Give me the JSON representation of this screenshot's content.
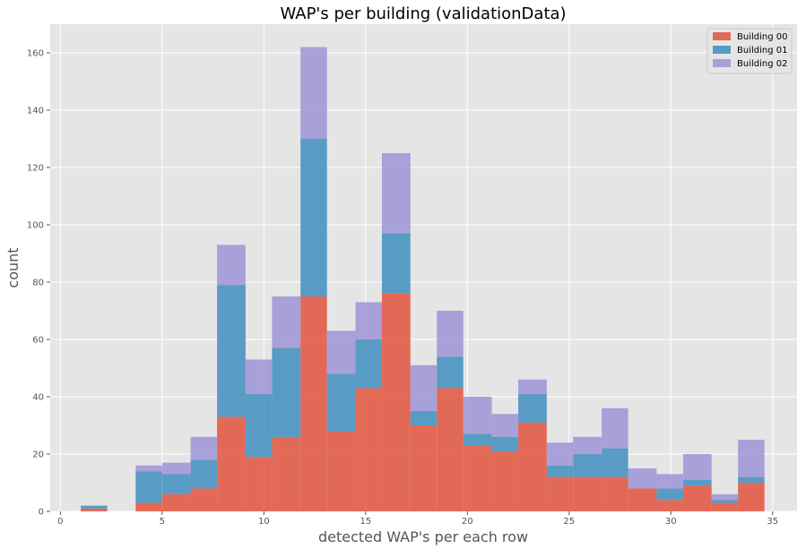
{
  "chart_data": {
    "type": "bar",
    "stacked": true,
    "title": "WAP's per building (validationData)",
    "xlabel": "detected WAP's per each row",
    "ylabel": "count",
    "xlim": [
      -0.5,
      36.2
    ],
    "ylim": [
      0,
      170
    ],
    "xticks": [
      0,
      5,
      10,
      15,
      20,
      25,
      30,
      35
    ],
    "yticks": [
      0,
      20,
      40,
      60,
      80,
      100,
      120,
      140,
      160
    ],
    "grid": true,
    "legend_position": "top-right",
    "bins": [
      [
        1,
        2.3
      ],
      [
        2.3,
        3.7
      ],
      [
        3.7,
        5.0
      ],
      [
        5.0,
        6.4
      ],
      [
        6.4,
        7.7
      ],
      [
        7.7,
        9.1
      ],
      [
        9.1,
        10.4
      ],
      [
        10.4,
        11.8
      ],
      [
        11.8,
        13.1
      ],
      [
        13.1,
        14.5
      ],
      [
        14.5,
        15.8
      ],
      [
        15.8,
        17.2
      ],
      [
        17.2,
        18.5
      ],
      [
        18.5,
        19.8
      ],
      [
        19.8,
        21.2
      ],
      [
        21.2,
        22.5
      ],
      [
        22.5,
        23.9
      ],
      [
        23.9,
        25.2
      ],
      [
        25.2,
        26.6
      ],
      [
        26.6,
        27.9
      ],
      [
        27.9,
        29.3
      ],
      [
        29.3,
        30.6
      ],
      [
        30.6,
        32.0
      ],
      [
        32.0,
        33.3
      ],
      [
        33.3,
        34.6
      ]
    ],
    "series": [
      {
        "name": "Building 00",
        "color": "#E24A33",
        "values": [
          1,
          0,
          3,
          6,
          8,
          33,
          19,
          26,
          75,
          28,
          43,
          76,
          30,
          43,
          23,
          21,
          31,
          12,
          12,
          12,
          8,
          4,
          9,
          3,
          10
        ]
      },
      {
        "name": "Building 01",
        "color": "#348ABD",
        "values": [
          1,
          0,
          11,
          7,
          10,
          46,
          22,
          31,
          55,
          20,
          17,
          21,
          5,
          11,
          4,
          5,
          10,
          4,
          8,
          10,
          0,
          4,
          2,
          1,
          2
        ]
      },
      {
        "name": "Building 02",
        "color": "#988ED5",
        "values": [
          0,
          0,
          2,
          4,
          8,
          14,
          12,
          18,
          32,
          15,
          13,
          28,
          16,
          16,
          13,
          8,
          5,
          8,
          6,
          14,
          7,
          5,
          9,
          2,
          13
        ]
      }
    ]
  }
}
